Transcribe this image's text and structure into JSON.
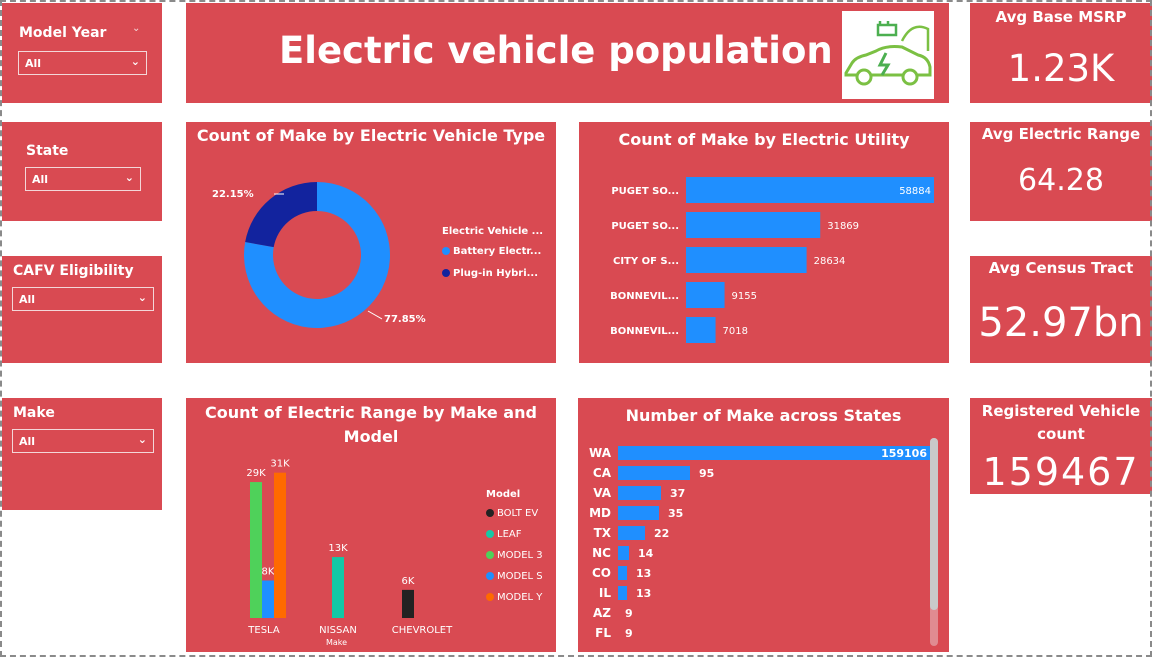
{
  "title": "Electric vehicle population",
  "logo_icon": "ev-charging-car-icon",
  "colors": {
    "card": "#d94a52",
    "blue": "#1f8fff",
    "dark_blue": "#12239e",
    "teal": "#14c8a6",
    "green": "#4fd15a",
    "orange": "#ff6a00",
    "black": "#222222"
  },
  "slicers": [
    {
      "label": "Model Year",
      "value": "All"
    },
    {
      "label": "State",
      "value": "All"
    },
    {
      "label": "CAFV Eligibility",
      "value": "All"
    },
    {
      "label": "Make",
      "value": "All"
    }
  ],
  "kpis": [
    {
      "label": "Avg Base MSRP",
      "value": "1.23K"
    },
    {
      "label": "Avg Electric Range",
      "value": "64.28"
    },
    {
      "label": "Avg Census Tract",
      "value": "52.97bn"
    },
    {
      "label": "Registered Vehicle count",
      "value": "159467"
    }
  ],
  "donut": {
    "title": "Count of Make by Electric Vehicle Type",
    "legend_title": "Electric Vehicle ...",
    "legend_items": [
      "Battery Electr...",
      "Plug-in Hybri..."
    ],
    "label_bev": "77.85%",
    "label_phev": "22.15%"
  },
  "utility_chart": {
    "title": "Count of Make by Electric Utility"
  },
  "range_chart": {
    "title": "Count of Electric Range by Make and Model",
    "legend_title": "Model",
    "xlabel": "Make"
  },
  "states_chart": {
    "title": "Number of Make across States"
  },
  "chart_data": [
    {
      "type": "pie",
      "title": "Count of Make by Electric Vehicle Type",
      "legend_title": "Electric Vehicle ...",
      "legend_placement": "right",
      "categories": [
        "Battery Electr...",
        "Plug-in Hybri..."
      ],
      "values": [
        77.85,
        22.15
      ],
      "unit": "%",
      "donut": true
    },
    {
      "type": "bar",
      "orientation": "horizontal",
      "title": "Count of Make by Electric Utility",
      "categories": [
        "PUGET SO...",
        "PUGET SO...",
        "CITY OF S...",
        "BONNEVIL...",
        "BONNEVIL..."
      ],
      "values": [
        58884,
        31869,
        28634,
        9155,
        7018
      ],
      "grid": false
    },
    {
      "type": "bar",
      "title": "Count of Electric Range by Make and Model",
      "xlabel": "Make",
      "categories": [
        "TESLA",
        "NISSAN",
        "CHEVROLET"
      ],
      "legend_title": "Model",
      "legend_placement": "right",
      "series": [
        {
          "name": "BOLT EV",
          "color": "#222222",
          "values": [
            null,
            null,
            6000
          ],
          "labels": [
            "",
            "",
            "6K"
          ]
        },
        {
          "name": "LEAF",
          "color": "#14c8a6",
          "values": [
            null,
            13000,
            null
          ],
          "labels": [
            "",
            "13K",
            ""
          ]
        },
        {
          "name": "MODEL 3",
          "color": "#4fd15a",
          "values": [
            29000,
            null,
            null
          ],
          "labels": [
            "29K",
            "",
            ""
          ]
        },
        {
          "name": "MODEL S",
          "color": "#1f8fff",
          "values": [
            8000,
            null,
            null
          ],
          "labels": [
            "8K",
            "",
            ""
          ]
        },
        {
          "name": "MODEL Y",
          "color": "#ff6a00",
          "values": [
            31000,
            null,
            null
          ],
          "labels": [
            "31K",
            "",
            ""
          ]
        }
      ],
      "ylim": [
        0,
        32000
      ],
      "grid": false
    },
    {
      "type": "bar",
      "orientation": "horizontal",
      "title": "Number of Make across States",
      "categories": [
        "WA",
        "CA",
        "VA",
        "MD",
        "TX",
        "NC",
        "CO",
        "IL",
        "AZ",
        "FL"
      ],
      "values": [
        159106,
        95,
        37,
        35,
        22,
        14,
        13,
        13,
        9,
        9
      ],
      "grid": false
    }
  ]
}
